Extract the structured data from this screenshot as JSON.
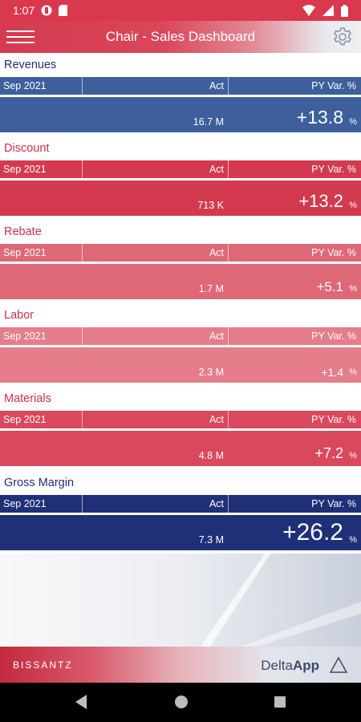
{
  "status_bar": {
    "time": "1:07"
  },
  "app_bar": {
    "title": "Chair - Sales Dashboard"
  },
  "colors": {
    "revenues": "#3d5f9b",
    "discount": "#d33a4f",
    "rebate": "#de6877",
    "labor": "#e57d8a",
    "materials": "#d9485c",
    "gross_margin": "#1f2f78",
    "title_blue": "#1f2f78",
    "title_red": "#cc2f45"
  },
  "sections": [
    {
      "title": "Revenues",
      "period": "Sep 2021",
      "act_label": "Act",
      "var_label": "PY Var. %",
      "act_value": "16.7 M",
      "var_value": "+13.8",
      "pct": "%"
    },
    {
      "title": "Discount",
      "period": "Sep 2021",
      "act_label": "Act",
      "var_label": "PY Var. %",
      "act_value": "713 K",
      "var_value": "+13.2",
      "pct": "%"
    },
    {
      "title": "Rebate",
      "period": "Sep 2021",
      "act_label": "Act",
      "var_label": "PY Var. %",
      "act_value": "1.7 M",
      "var_value": "+5.1",
      "pct": "%"
    },
    {
      "title": "Labor",
      "period": "Sep 2021",
      "act_label": "Act",
      "var_label": "PY Var. %",
      "act_value": "2.3 M",
      "var_value": "+1.4",
      "pct": "%"
    },
    {
      "title": "Materials",
      "period": "Sep 2021",
      "act_label": "Act",
      "var_label": "PY Var. %",
      "act_value": "4.8 M",
      "var_value": "+7.2",
      "pct": "%"
    },
    {
      "title": "Gross Margin",
      "period": "Sep 2021",
      "act_label": "Act",
      "var_label": "PY Var. %",
      "act_value": "7.3 M",
      "var_value": "+26.2",
      "pct": "%"
    }
  ],
  "footer": {
    "brand_left": "BISSANTZ",
    "brand_right_a": "Delta",
    "brand_right_b": "App"
  }
}
